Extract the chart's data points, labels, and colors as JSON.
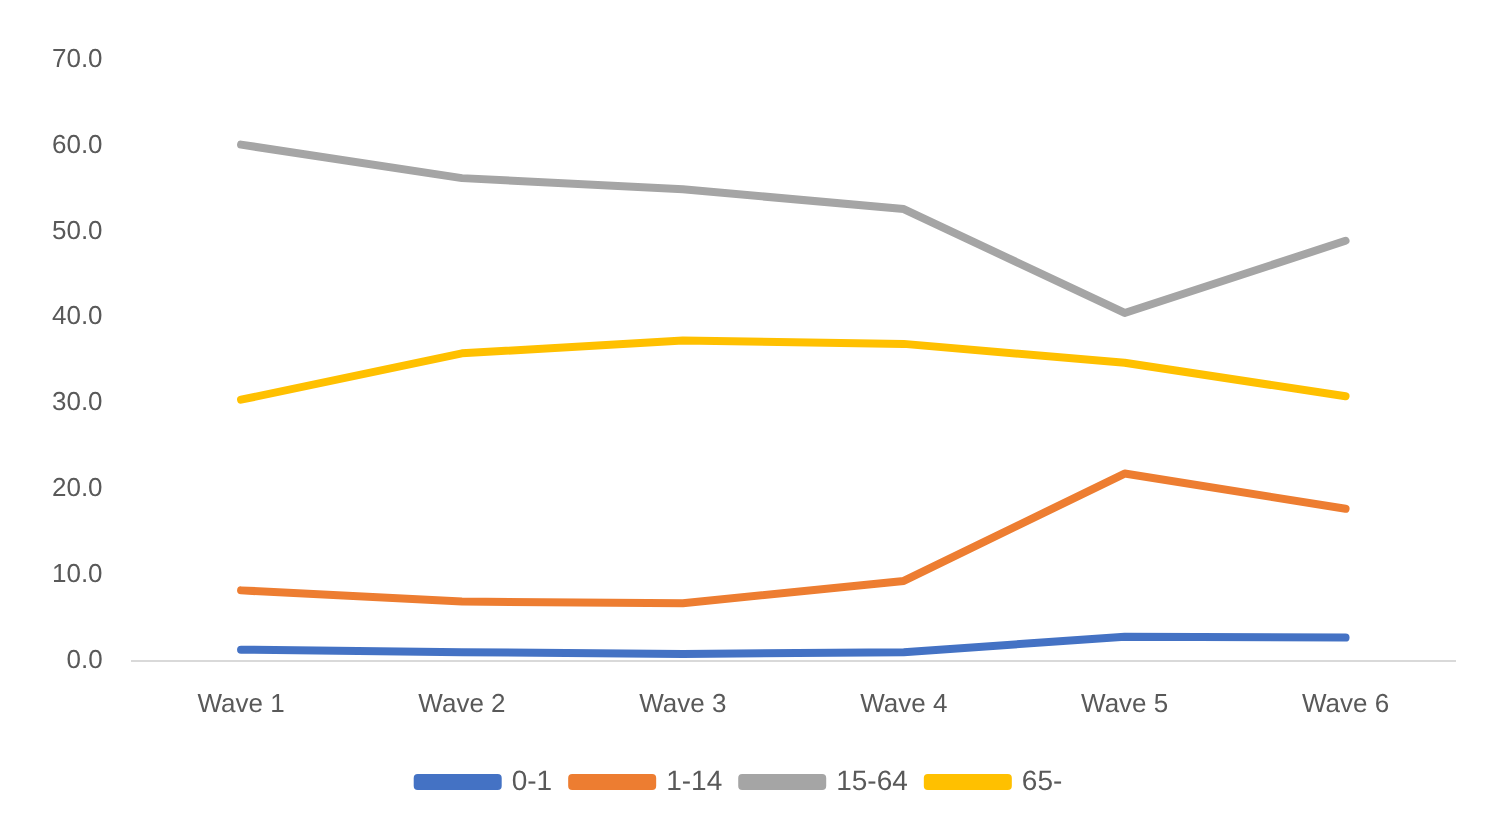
{
  "chart_data": {
    "type": "line",
    "categories": [
      "Wave 1",
      "Wave 2",
      "Wave 3",
      "Wave 4",
      "Wave 5",
      "Wave 6"
    ],
    "series": [
      {
        "name": "0-1",
        "color": "#4472c4",
        "values": [
          1.3,
          1.0,
          0.8,
          1.0,
          2.8,
          2.7
        ]
      },
      {
        "name": "1-14",
        "color": "#ed7d31",
        "values": [
          8.2,
          6.9,
          6.7,
          9.3,
          21.8,
          17.7
        ]
      },
      {
        "name": "15-64",
        "color": "#a5a5a5",
        "values": [
          60.1,
          56.2,
          54.9,
          52.6,
          40.5,
          48.9
        ]
      },
      {
        "name": "65-",
        "color": "#ffc000",
        "values": [
          30.4,
          35.8,
          37.3,
          36.9,
          34.7,
          30.8
        ]
      }
    ],
    "ylim": [
      0,
      70
    ],
    "yticks": [
      {
        "value": 0,
        "label": "0.0"
      },
      {
        "value": 10,
        "label": "10.0"
      },
      {
        "value": 20,
        "label": "20.0"
      },
      {
        "value": 30,
        "label": "30.0"
      },
      {
        "value": 40,
        "label": "40.0"
      },
      {
        "value": 50,
        "label": "50.0"
      },
      {
        "value": 60,
        "label": "60.0"
      },
      {
        "value": 70,
        "label": "70.0"
      }
    ],
    "grid": false,
    "legend": "bottom",
    "marker": "none",
    "line_style": "solid"
  }
}
